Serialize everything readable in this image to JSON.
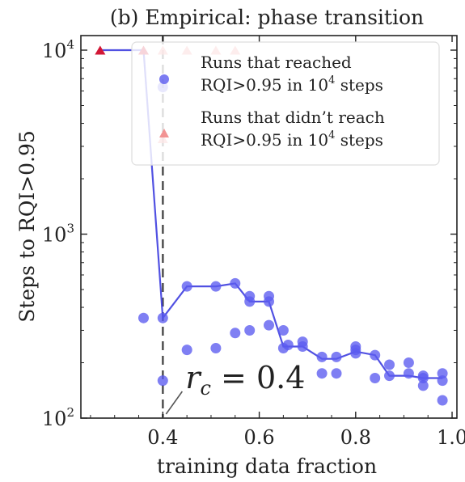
{
  "chart_data": {
    "type": "scatter",
    "title": "(b) Empirical: phase transition",
    "xlabel": "training data fraction",
    "ylabel": "Steps to RQI>0.95",
    "xlim": [
      0.23,
      1.01
    ],
    "ylim": [
      100,
      12000
    ],
    "yscale": "log",
    "xticks": [
      0.4,
      0.6,
      0.8,
      1.0
    ],
    "xtick_labels": [
      "0.4",
      "0.6",
      "0.8",
      "1.0"
    ],
    "yticks": [
      100,
      1000,
      10000
    ],
    "ytick_labels": [
      {
        "base": "10",
        "exp": "2"
      },
      {
        "base": "10",
        "exp": "3"
      },
      {
        "base": "10",
        "exp": "4"
      }
    ],
    "grid": false,
    "legend_position": "top-right",
    "legend": [
      {
        "line1": "Runs that reached",
        "line2_base": "RQI>0.95 in 10",
        "line2_exp": "4",
        "line2_tail": " steps",
        "marker": "circle"
      },
      {
        "line1": "Runs that didn’t reach",
        "line2_base": "RQI>0.95 in 10",
        "line2_exp": "4",
        "line2_tail": " steps",
        "marker": "triangle"
      }
    ],
    "series": [
      {
        "name": "Runs that reached RQI>0.95 in 10^4 steps",
        "kind": "points",
        "marker": "circle",
        "color": "#5b5bef",
        "x": [
          0.4,
          0.4,
          0.36,
          0.4,
          0.45,
          0.45,
          0.51,
          0.51,
          0.55,
          0.55,
          0.58,
          0.58,
          0.58,
          0.62,
          0.62,
          0.62,
          0.65,
          0.65,
          0.66,
          0.69,
          0.69,
          0.73,
          0.73,
          0.76,
          0.76,
          0.8,
          0.8,
          0.8,
          0.84,
          0.84,
          0.87,
          0.87,
          0.91,
          0.91,
          0.94,
          0.94,
          0.94,
          0.98,
          0.98,
          0.98
        ],
        "y": [
          6300,
          350,
          350,
          160,
          520,
          235,
          520,
          240,
          540,
          290,
          460,
          430,
          300,
          460,
          430,
          320,
          300,
          240,
          250,
          260,
          245,
          215,
          175,
          215,
          175,
          245,
          235,
          225,
          220,
          165,
          195,
          170,
          200,
          175,
          170,
          165,
          150,
          175,
          160,
          125
        ]
      },
      {
        "name": "mean",
        "kind": "line",
        "color": "#3333dd",
        "x": [
          0.27,
          0.36,
          0.4,
          0.45,
          0.51,
          0.55,
          0.58,
          0.62,
          0.65,
          0.69,
          0.73,
          0.76,
          0.8,
          0.84,
          0.87,
          0.91,
          0.94,
          0.98
        ],
        "y": [
          10000,
          10000,
          350,
          520,
          520,
          540,
          430,
          430,
          245,
          245,
          210,
          210,
          230,
          220,
          170,
          170,
          165,
          165
        ]
      },
      {
        "name": "Runs that didn't reach RQI>0.95 in 10^4 steps",
        "kind": "points",
        "marker": "triangle",
        "color": "#f08080",
        "x": [
          0.27,
          0.36,
          0.4,
          0.45,
          0.51,
          0.55,
          0.4
        ],
        "y": [
          10000,
          10000,
          10000,
          10000,
          10000,
          10000,
          3300
        ]
      },
      {
        "name": "highlight",
        "kind": "points",
        "marker": "triangle",
        "color": "#d01030",
        "x": [
          0.27,
          0.36
        ],
        "y": [
          10000,
          10000
        ]
      }
    ],
    "annotations": [
      {
        "kind": "vline",
        "x": 0.4,
        "style": "dashed"
      },
      {
        "kind": "text",
        "base": "r",
        "sub": "c",
        "tail": " = 0.4"
      }
    ]
  }
}
